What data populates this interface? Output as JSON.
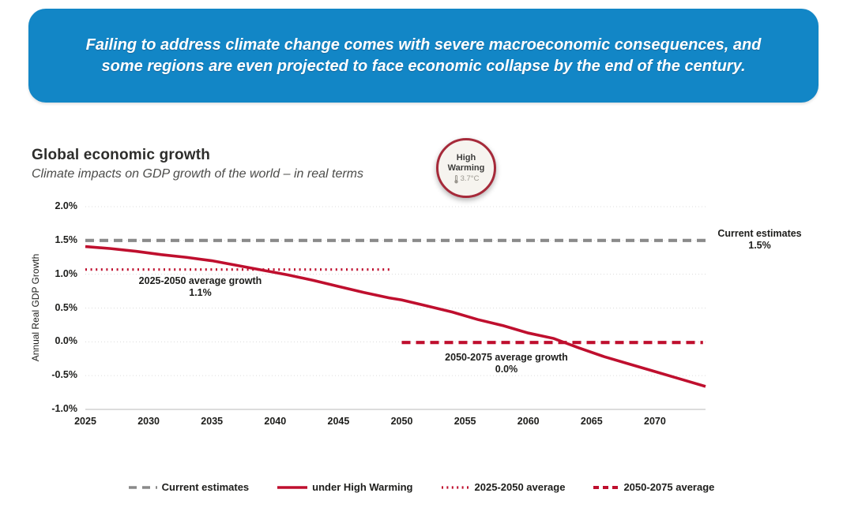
{
  "banner": {
    "text": "Failing to address climate change comes with severe macroeconomic consequences, and some regions are even projected to face economic collapse by the end of the century.",
    "bg_color": "#1286c6",
    "text_color": "#ffffff"
  },
  "header": {
    "title": "Global economic growth",
    "subtitle": "Climate impacts on GDP growth of the world – in real terms"
  },
  "badge": {
    "line1": "High",
    "line2": "Warming",
    "temperature": "3.7°C",
    "border_color": "#a62a3a",
    "fill_color": "#f6f4ef",
    "icon": "thermometer-icon"
  },
  "chart_data": {
    "type": "line",
    "title": "Global economic growth",
    "subtitle": "Climate impacts on GDP growth of the world – in real terms",
    "xlabel": "",
    "ylabel": "Annual Real GDP Growth",
    "xlim": [
      2025,
      2074
    ],
    "ylim": [
      -1.0,
      2.0
    ],
    "grid": "horizontal-dotted",
    "legend_position": "bottom",
    "yticks": [
      {
        "label": "2.0%",
        "value": 2.0
      },
      {
        "label": "1.5%",
        "value": 1.5
      },
      {
        "label": "1.0%",
        "value": 1.0
      },
      {
        "label": "0.5%",
        "value": 0.5
      },
      {
        "label": "0.0%",
        "value": 0.0
      },
      {
        "label": "-0.5%",
        "value": -0.5
      },
      {
        "label": "-1.0%",
        "value": -1.0
      }
    ],
    "xticks": [
      {
        "label": "2025",
        "value": 2025
      },
      {
        "label": "2030",
        "value": 2030
      },
      {
        "label": "2035",
        "value": 2035
      },
      {
        "label": "2040",
        "value": 2040
      },
      {
        "label": "2045",
        "value": 2045
      },
      {
        "label": "2050",
        "value": 2050
      },
      {
        "label": "2055",
        "value": 2055
      },
      {
        "label": "2060",
        "value": 2060
      },
      {
        "label": "2065",
        "value": 2065
      },
      {
        "label": "2070",
        "value": 2070
      }
    ],
    "series": [
      {
        "name": "Current estimates",
        "style": "dashed",
        "color": "#8a8a8a",
        "x": [
          2025,
          2074
        ],
        "y": [
          1.5,
          1.5
        ]
      },
      {
        "name": "under High Warming",
        "style": "solid",
        "color": "#bf0f2e",
        "x": [
          2025,
          2027,
          2029,
          2031,
          2033,
          2035,
          2037,
          2039,
          2041,
          2043,
          2045,
          2047,
          2049,
          2050,
          2052,
          2054,
          2056,
          2058,
          2060,
          2061,
          2062,
          2064,
          2066,
          2068,
          2070,
          2072,
          2074
        ],
        "y": [
          1.41,
          1.38,
          1.34,
          1.29,
          1.25,
          1.2,
          1.13,
          1.06,
          0.99,
          0.91,
          0.82,
          0.73,
          0.65,
          0.62,
          0.53,
          0.44,
          0.33,
          0.24,
          0.13,
          0.09,
          0.05,
          -0.09,
          -0.22,
          -0.33,
          -0.44,
          -0.55,
          -0.66
        ]
      },
      {
        "name": "2025-2050 average",
        "style": "dotted",
        "color": "#bf0f2e",
        "x": [
          2025,
          2049.3
        ],
        "y": [
          1.07,
          1.07
        ]
      },
      {
        "name": "2050-2075 average",
        "style": "dashed",
        "color": "#bf0f2e",
        "x": [
          2050,
          2073.8
        ],
        "y": [
          -0.01,
          -0.01
        ]
      }
    ],
    "annotations": [
      {
        "line1": "Current estimates",
        "line2": "1.5%"
      },
      {
        "line1": "2025-2050 average growth",
        "line2": "1.1%"
      },
      {
        "line1": "2050-2075 average growth",
        "line2": "0.0%"
      }
    ],
    "legend": [
      "Current estimates",
      "under High Warming",
      "2025-2050 average",
      "2050-2075 average"
    ]
  }
}
